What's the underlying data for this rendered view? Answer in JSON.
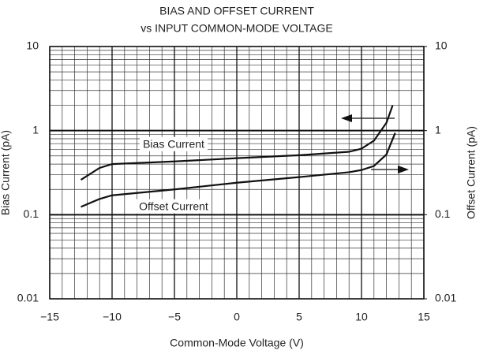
{
  "chart_data": {
    "type": "line",
    "title": "BIAS AND OFFSET CURRENT",
    "subtitle": "vs INPUT COMMON-MODE VOLTAGE",
    "x_label": "Common-Mode Voltage (V)",
    "y_label": "Bias Current (pA)",
    "y2_label": "Offset Current (pA)",
    "xlim": [
      -15,
      15
    ],
    "xticks": [
      {
        "value": -15,
        "label": "−15"
      },
      {
        "value": -10,
        "label": "−10"
      },
      {
        "value": -5,
        "label": "−5"
      },
      0,
      5,
      10,
      15
    ],
    "ylim": [
      0.01,
      10
    ],
    "yticks": [
      0.01,
      0.1,
      1,
      10
    ],
    "y2lim": [
      0.01,
      10
    ],
    "y2ticks": [
      0.01,
      0.1,
      1,
      10
    ],
    "log_scale": true,
    "grid": true,
    "annotations": [
      "Bias Current",
      "Offset Current"
    ],
    "series": [
      {
        "name": "Bias Current",
        "color": "#111111",
        "x": [
          -12.5,
          -11,
          -10,
          -5,
          0,
          5,
          9,
          10,
          11,
          12,
          12.5
        ],
        "values": [
          0.26,
          0.36,
          0.4,
          0.43,
          0.47,
          0.51,
          0.56,
          0.61,
          0.76,
          1.24,
          2.0
        ]
      },
      {
        "name": "Offset Current",
        "color": "#111111",
        "axis": "y2",
        "x": [
          -12.5,
          -11,
          -10,
          -5,
          0,
          5,
          9,
          10,
          11,
          12,
          12.7
        ],
        "values": [
          0.124,
          0.154,
          0.17,
          0.2,
          0.24,
          0.28,
          0.32,
          0.34,
          0.38,
          0.52,
          0.94
        ]
      }
    ]
  }
}
